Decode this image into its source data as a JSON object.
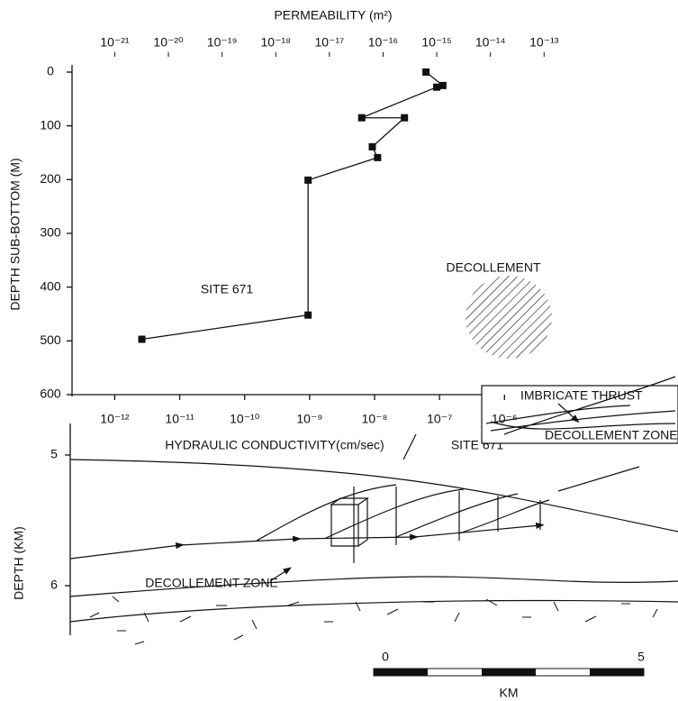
{
  "chart_data": {
    "type": "line",
    "title": "PERMEABILITY (m²)",
    "ylabel": "DEPTH SUB-BOTTOM (M)",
    "x2label": "HYDRAULIC CONDUCTIVITY(cm/sec)",
    "log_scale": true,
    "y_inverted": true,
    "color": "#111111",
    "x": [
      6.3e-16,
      1.3e-15,
      1e-15,
      4e-17,
      2.5e-16,
      6.3e-17,
      7.9e-17,
      4e-18,
      4e-18,
      3.2e-21
    ],
    "values": [
      0,
      25,
      28,
      85,
      85,
      139,
      159,
      201,
      452,
      497
    ],
    "xlim": [
      1.6e-22,
      2.5e-13
    ],
    "xticks": [
      {
        "value": 1e-21,
        "label": "10⁻²¹"
      },
      {
        "value": 1e-20,
        "label": "10⁻²⁰"
      },
      {
        "value": 1e-19,
        "label": "10⁻¹⁹"
      },
      {
        "value": 1e-18,
        "label": "10⁻¹⁸"
      },
      {
        "value": 1e-17,
        "label": "10⁻¹⁷"
      },
      {
        "value": 1e-16,
        "label": "10⁻¹⁶"
      },
      {
        "value": 1e-15,
        "label": "10⁻¹⁵"
      },
      {
        "value": 1e-14,
        "label": "10⁻¹⁴"
      },
      {
        "value": 1e-13,
        "label": "10⁻¹³"
      }
    ],
    "x2lim": [
      2.2e-13,
      1.2e-06
    ],
    "x2ticks": [
      {
        "value": 1e-12,
        "label": "10⁻¹²"
      },
      {
        "value": 1e-11,
        "label": "10⁻¹¹"
      },
      {
        "value": 1e-10,
        "label": "10⁻¹⁰"
      },
      {
        "value": 1e-09,
        "label": "10⁻⁹"
      },
      {
        "value": 1e-08,
        "label": "10⁻⁸"
      },
      {
        "value": 1e-07,
        "label": "10⁻⁷"
      },
      {
        "value": 1e-06,
        "label": "10⁻⁶"
      }
    ],
    "ylim": [
      0,
      600
    ],
    "yticks": [
      0,
      100,
      200,
      300,
      400,
      500,
      600
    ],
    "annotations": [
      "SITE 671",
      "DECOLLEMENT"
    ]
  },
  "cross_section": {
    "depth_label": "DEPTH (KM)",
    "depth_ticks": [
      5,
      6
    ],
    "site_label": "SITE 671",
    "zone_label": "DECOLLEMENT ZONE",
    "inset": {
      "thrust_label": "IMBRICATE THRUST",
      "zone_label": "DECOLLEMENT ZONE"
    },
    "scale": {
      "ticks": [
        0,
        5
      ],
      "unit": "KM"
    }
  }
}
